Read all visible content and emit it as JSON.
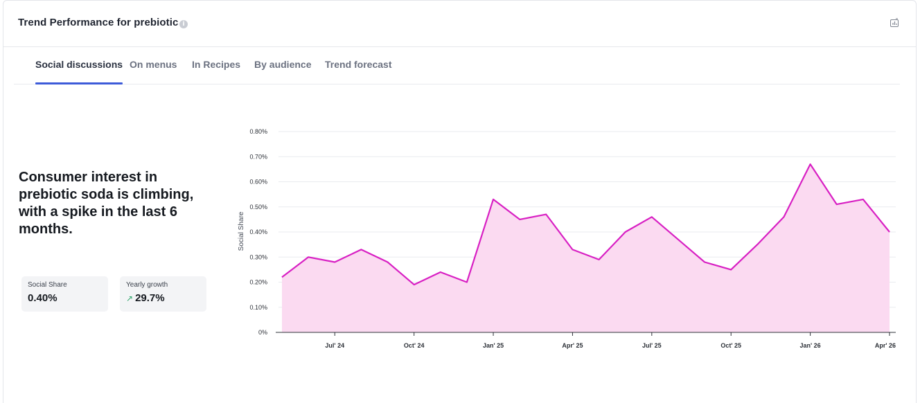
{
  "header": {
    "title": "Trend Performance for prebiotic",
    "info_icon": "info-icon",
    "export_icon": "chart-export-icon"
  },
  "tabs": [
    {
      "label": "Social discussions",
      "active": true
    },
    {
      "label": "On menus",
      "active": false
    },
    {
      "label": "In Recipes",
      "active": false
    },
    {
      "label": "By audience",
      "active": false
    },
    {
      "label": "Trend forecast",
      "active": false
    }
  ],
  "summary": {
    "headline": "Consumer interest in prebiotic soda is climbing, with a spike in the last 6 months."
  },
  "metrics": [
    {
      "label": "Social Share",
      "value": "0.40%"
    },
    {
      "label": "Yearly growth",
      "value": "29.7%",
      "trend_icon": "trend-up-icon"
    }
  ],
  "colors": {
    "accent": "#3d5bd9",
    "line": "#d81fc3",
    "fill": "#fbdaf1",
    "growth": "#2fa56b"
  },
  "chart_data": {
    "type": "area",
    "ylabel": "Social Share",
    "xlabel": "",
    "ylim": [
      0,
      0.8
    ],
    "y_ticks": [
      "0%",
      "0.10%",
      "0.20%",
      "0.30%",
      "0.40%",
      "0.50%",
      "0.60%",
      "0.70%",
      "0.80%"
    ],
    "x_ticks": [
      "Jul' 24",
      "Oct' 24",
      "Jan' 25",
      "Apr' 25",
      "Jul' 25",
      "Oct' 25",
      "Jan' 26",
      "Apr' 26"
    ],
    "grid": true,
    "series": [
      {
        "values": [
          0.22,
          0.3,
          0.28,
          0.33,
          0.28,
          0.19,
          0.24,
          0.2,
          0.53,
          0.45,
          0.47,
          0.33,
          0.29,
          0.4,
          0.46,
          0.37,
          0.28,
          0.25,
          0.35,
          0.46,
          0.67,
          0.51,
          0.53,
          0.4
        ]
      }
    ]
  }
}
